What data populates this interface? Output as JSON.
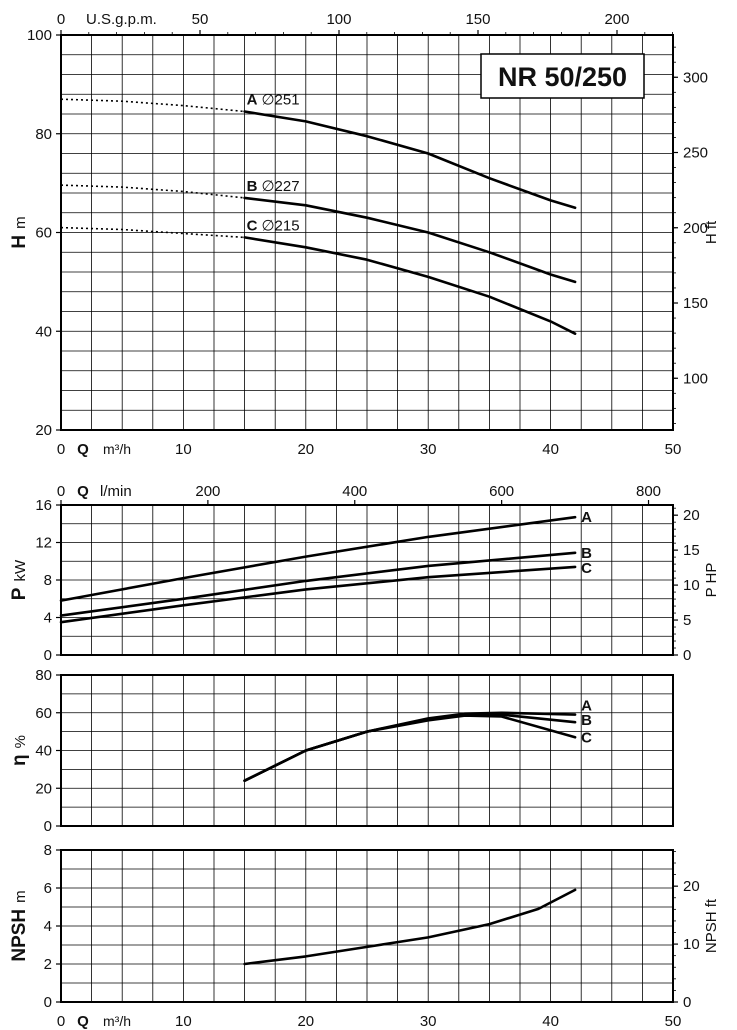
{
  "chart_title": "NR 50/250",
  "chart_data": [
    {
      "type": "line",
      "id": "head",
      "ylabel": "H",
      "yunit": "m",
      "xlabel": "Q",
      "xunit": "m³/h",
      "xlim": [
        0,
        50
      ],
      "ylim": [
        20,
        100
      ],
      "xticks": [
        0,
        10,
        20,
        30,
        40,
        50
      ],
      "yticks": [
        20,
        40,
        60,
        80,
        100
      ],
      "top_axis": {
        "label": "U.S.g.p.m.",
        "ticks": [
          0,
          50,
          100,
          150,
          200
        ]
      },
      "right_axis": {
        "label": "H",
        "unit": "ft",
        "ticks": [
          100,
          150,
          200,
          250,
          300
        ]
      },
      "series": [
        {
          "name": "A",
          "label_suffix": "∅251",
          "dotted": {
            "x": [
              0,
              5,
              10,
              15
            ],
            "y": [
              87,
              86.6,
              85.7,
              84.5
            ]
          },
          "x": [
            15,
            20,
            25,
            30,
            35,
            40,
            42
          ],
          "y": [
            84.5,
            82.5,
            79.5,
            76.0,
            71.0,
            66.5,
            65.0
          ]
        },
        {
          "name": "B",
          "label_suffix": "∅227",
          "dotted": {
            "x": [
              0,
              5,
              10,
              15
            ],
            "y": [
              69.6,
              69.2,
              68.3,
              67
            ]
          },
          "x": [
            15,
            20,
            25,
            30,
            35,
            40,
            42
          ],
          "y": [
            67.0,
            65.5,
            63.0,
            60.0,
            56.0,
            51.5,
            50.0
          ]
        },
        {
          "name": "C",
          "label_suffix": "∅215",
          "dotted": {
            "x": [
              0,
              5,
              10,
              15
            ],
            "y": [
              61,
              60.6,
              59.8,
              59
            ]
          },
          "x": [
            15,
            20,
            25,
            30,
            35,
            40,
            42
          ],
          "y": [
            59.0,
            57.0,
            54.5,
            51.0,
            47.0,
            42.0,
            39.5
          ]
        }
      ]
    },
    {
      "type": "line",
      "id": "power",
      "ylabel": "P",
      "yunit": "kW",
      "xlim": [
        0,
        50
      ],
      "ylim": [
        0,
        16
      ],
      "yticks": [
        0,
        4,
        8,
        12,
        16
      ],
      "top_axis": {
        "xlabel": "Q",
        "label": "l/min",
        "ticks": [
          0,
          200,
          400,
          600,
          800
        ]
      },
      "right_axis": {
        "label": "P",
        "unit": "HP",
        "ticks": [
          0,
          5,
          10,
          15,
          20
        ]
      },
      "series": [
        {
          "name": "A",
          "x": [
            0,
            10,
            20,
            30,
            42
          ],
          "y": [
            5.8,
            8.2,
            10.5,
            12.6,
            14.7
          ]
        },
        {
          "name": "B",
          "x": [
            0,
            10,
            20,
            30,
            42
          ],
          "y": [
            4.2,
            6.0,
            7.9,
            9.5,
            10.9
          ]
        },
        {
          "name": "C",
          "x": [
            0,
            10,
            20,
            30,
            42
          ],
          "y": [
            3.5,
            5.3,
            7.0,
            8.3,
            9.4
          ]
        }
      ]
    },
    {
      "type": "line",
      "id": "efficiency",
      "ylabel": "η",
      "yunit": "%",
      "xlim": [
        0,
        50
      ],
      "ylim": [
        0,
        80
      ],
      "yticks": [
        0,
        20,
        40,
        60,
        80
      ],
      "series": [
        {
          "name": "A",
          "x": [
            15,
            20,
            25,
            30,
            33,
            36,
            42
          ],
          "y": [
            24,
            40,
            50,
            57,
            59.5,
            60,
            59
          ]
        },
        {
          "name": "B",
          "x": [
            15,
            20,
            25,
            30,
            33,
            36,
            42
          ],
          "y": [
            24,
            40,
            50,
            56.5,
            59,
            59,
            55
          ]
        },
        {
          "name": "C",
          "x": [
            15,
            20,
            25,
            30,
            33,
            36,
            42
          ],
          "y": [
            24,
            40,
            50,
            56,
            58.5,
            58,
            47
          ]
        }
      ]
    },
    {
      "type": "line",
      "id": "npsh",
      "ylabel": "NPSH",
      "yunit": "m",
      "xlabel": "Q",
      "xunit": "m³/h",
      "xlim": [
        0,
        50
      ],
      "ylim": [
        0,
        8
      ],
      "xticks": [
        0,
        10,
        20,
        30,
        40,
        50
      ],
      "yticks": [
        0,
        2,
        4,
        6,
        8
      ],
      "right_axis": {
        "label": "NPSH",
        "unit": "ft",
        "ticks": [
          0,
          10,
          20
        ]
      },
      "series": [
        {
          "name": "",
          "x": [
            15,
            20,
            25,
            30,
            35,
            39,
            42
          ],
          "y": [
            2.0,
            2.4,
            2.9,
            3.4,
            4.1,
            4.9,
            5.9
          ]
        }
      ]
    }
  ]
}
